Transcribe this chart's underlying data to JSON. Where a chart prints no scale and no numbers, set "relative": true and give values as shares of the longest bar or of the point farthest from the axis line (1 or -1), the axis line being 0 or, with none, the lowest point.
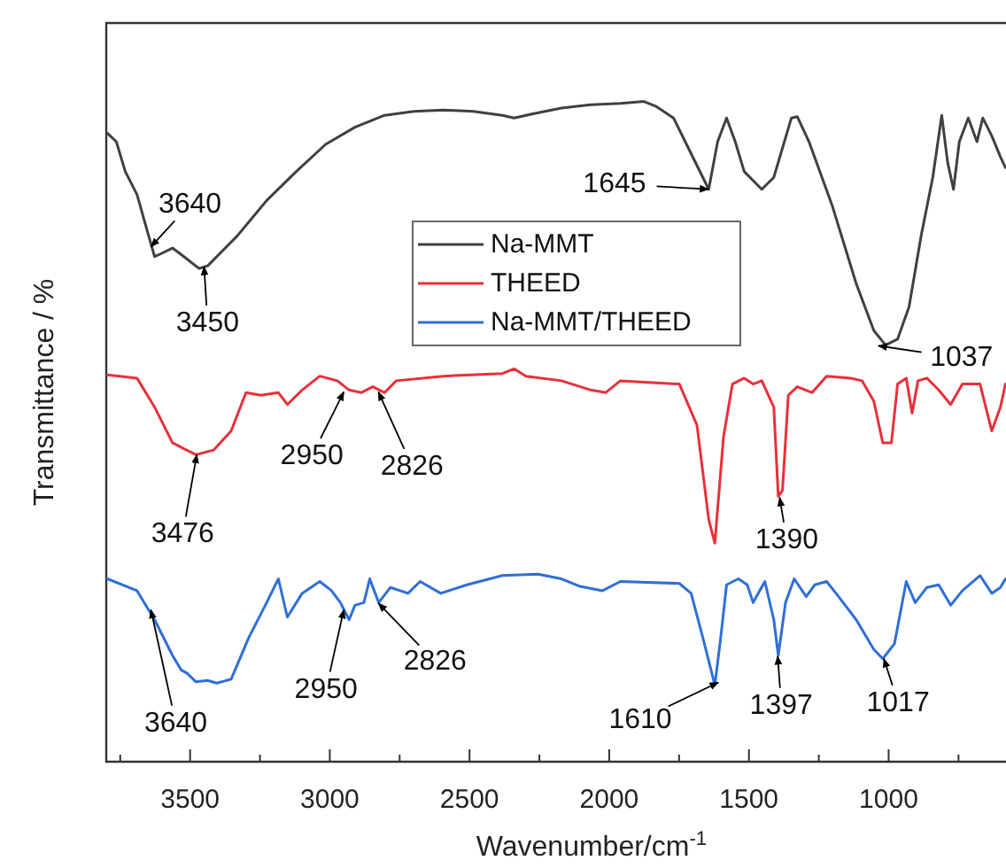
{
  "chart_data": {
    "type": "line",
    "relative": true,
    "xlabel": "Wavenumber/cm$^{-1}$",
    "ylabel": "Transmittance / %",
    "xlim": [
      3800,
      580
    ],
    "xticks": [
      {
        "value": 3750,
        "label": null
      },
      3500,
      {
        "value": 3250,
        "label": null
      },
      3000,
      {
        "value": 2750,
        "label": null
      },
      2500,
      {
        "value": 2250,
        "label": null
      },
      2000,
      {
        "value": 1750,
        "label": null
      },
      1500,
      {
        "value": 1250,
        "label": null
      },
      1000,
      {
        "value": 750,
        "label": null
      }
    ],
    "tick_labels": "x",
    "legend": "top",
    "line_style": "solid",
    "marker": "none",
    "series": [
      {
        "name": "Na-MMT",
        "color": "#404040",
        "x": [
          3796,
          3764,
          3732,
          3690,
          3648,
          3627,
          3606,
          3563,
          3522,
          3468,
          3437,
          3332,
          3226,
          3120,
          3015,
          2910,
          2804,
          2699,
          2593,
          2487,
          2382,
          2340,
          2277,
          2171,
          2066,
          1960,
          1876,
          1834,
          1770,
          1728,
          1665,
          1644,
          1612,
          1580,
          1549,
          1517,
          1454,
          1411,
          1348,
          1327,
          1285,
          1201,
          1116,
          1053,
          1011,
          968,
          927,
          884,
          842,
          810,
          789,
          768,
          747,
          715,
          684,
          663,
          631,
          600,
          582
        ],
        "values": [
          0.952,
          0.939,
          0.894,
          0.859,
          0.796,
          0.765,
          0.769,
          0.778,
          0.765,
          0.747,
          0.751,
          0.796,
          0.85,
          0.894,
          0.935,
          0.961,
          0.979,
          0.985,
          0.987,
          0.985,
          0.979,
          0.975,
          0.981,
          0.99,
          0.995,
          0.997,
          1,
          0.993,
          0.975,
          0.939,
          0.885,
          0.867,
          0.939,
          0.975,
          0.939,
          0.894,
          0.867,
          0.885,
          0.975,
          0.977,
          0.939,
          0.841,
          0.724,
          0.653,
          0.631,
          0.64,
          0.689,
          0.796,
          0.885,
          0.979,
          0.908,
          0.867,
          0.939,
          0.975,
          0.939,
          0.975,
          0.948,
          0.916,
          0.9
        ]
      },
      {
        "name": "THEED",
        "color": "#e8303a",
        "x": [
          3796,
          3690,
          3627,
          3563,
          3522,
          3479,
          3416,
          3353,
          3300,
          3247,
          3184,
          3152,
          3099,
          3036,
          2973,
          2931,
          2888,
          2846,
          2804,
          2762,
          2593,
          2382,
          2340,
          2298,
          2171,
          2066,
          2013,
          1960,
          1749,
          1686,
          1644,
          1622,
          1591,
          1559,
          1517,
          1485,
          1454,
          1411,
          1395,
          1380,
          1359,
          1327,
          1274,
          1222,
          1137,
          1095,
          1053,
          1021,
          990,
          968,
          937,
          916,
          895,
          863,
          821,
          778,
          736,
          673,
          631,
          600,
          582
        ],
        "values": [
          0.586,
          0.581,
          0.537,
          0.483,
          0.474,
          0.465,
          0.472,
          0.501,
          0.559,
          0.555,
          0.559,
          0.541,
          0.563,
          0.584,
          0.577,
          0.563,
          0.559,
          0.568,
          0.559,
          0.577,
          0.584,
          0.588,
          0.595,
          0.584,
          0.577,
          0.563,
          0.559,
          0.577,
          0.572,
          0.51,
          0.367,
          0.331,
          0.492,
          0.572,
          0.581,
          0.572,
          0.577,
          0.537,
          0.402,
          0.411,
          0.555,
          0.568,
          0.559,
          0.584,
          0.581,
          0.577,
          0.546,
          0.483,
          0.483,
          0.572,
          0.581,
          0.528,
          0.577,
          0.581,
          0.563,
          0.541,
          0.572,
          0.572,
          0.501,
          0.537,
          0.572
        ]
      },
      {
        "name": "Na-MMT/THEED",
        "color": "#2f6fd6",
        "x": [
          3796,
          3690,
          3627,
          3563,
          3532,
          3511,
          3479,
          3437,
          3405,
          3353,
          3290,
          3226,
          3184,
          3152,
          3099,
          3036,
          2994,
          2962,
          2931,
          2910,
          2878,
          2857,
          2825,
          2783,
          2720,
          2677,
          2603,
          2509,
          2382,
          2255,
          2171,
          2108,
          2024,
          1960,
          1749,
          1707,
          1665,
          1622,
          1601,
          1580,
          1538,
          1506,
          1485,
          1443,
          1411,
          1395,
          1369,
          1338,
          1295,
          1264,
          1222,
          1179,
          1116,
          1053,
          1021,
          979,
          937,
          905,
          863,
          821,
          778,
          736,
          673,
          631,
          600,
          582
        ],
        "values": [
          0.277,
          0.259,
          0.215,
          0.161,
          0.139,
          0.134,
          0.121,
          0.123,
          0.119,
          0.125,
          0.188,
          0.241,
          0.277,
          0.219,
          0.255,
          0.273,
          0.259,
          0.241,
          0.215,
          0.237,
          0.241,
          0.277,
          0.241,
          0.264,
          0.255,
          0.273,
          0.255,
          0.268,
          0.282,
          0.284,
          0.277,
          0.266,
          0.259,
          0.273,
          0.27,
          0.255,
          0.188,
          0.116,
          0.188,
          0.268,
          0.277,
          0.268,
          0.241,
          0.273,
          0.215,
          0.161,
          0.241,
          0.277,
          0.25,
          0.268,
          0.273,
          0.25,
          0.215,
          0.17,
          0.156,
          0.179,
          0.273,
          0.241,
          0.264,
          0.268,
          0.237,
          0.259,
          0.282,
          0.255,
          0.264,
          0.277
        ]
      }
    ],
    "annotations": [
      {
        "text": "3640",
        "x": 3640,
        "y": 0.78
      },
      {
        "text": "3450",
        "x": 3450,
        "y": 0.75
      },
      {
        "text": "1645",
        "x": 1645,
        "y": 0.867
      },
      {
        "text": "1037",
        "x": 1037,
        "y": 0.63
      },
      {
        "text": "3476",
        "x": 3476,
        "y": 0.465
      },
      {
        "text": "2950",
        "x": 2950,
        "y": 0.56
      },
      {
        "text": "2826",
        "x": 2826,
        "y": 0.56
      },
      {
        "text": "1390",
        "x": 1390,
        "y": 0.4
      },
      {
        "text": "3640",
        "x": 3640,
        "y": 0.23
      },
      {
        "text": "2950",
        "x": 2950,
        "y": 0.23
      },
      {
        "text": "2826",
        "x": 2826,
        "y": 0.24
      },
      {
        "text": "1610",
        "x": 1610,
        "y": 0.12
      },
      {
        "text": "1397",
        "x": 1397,
        "y": 0.16
      },
      {
        "text": "1017",
        "x": 1017,
        "y": 0.156
      }
    ]
  }
}
